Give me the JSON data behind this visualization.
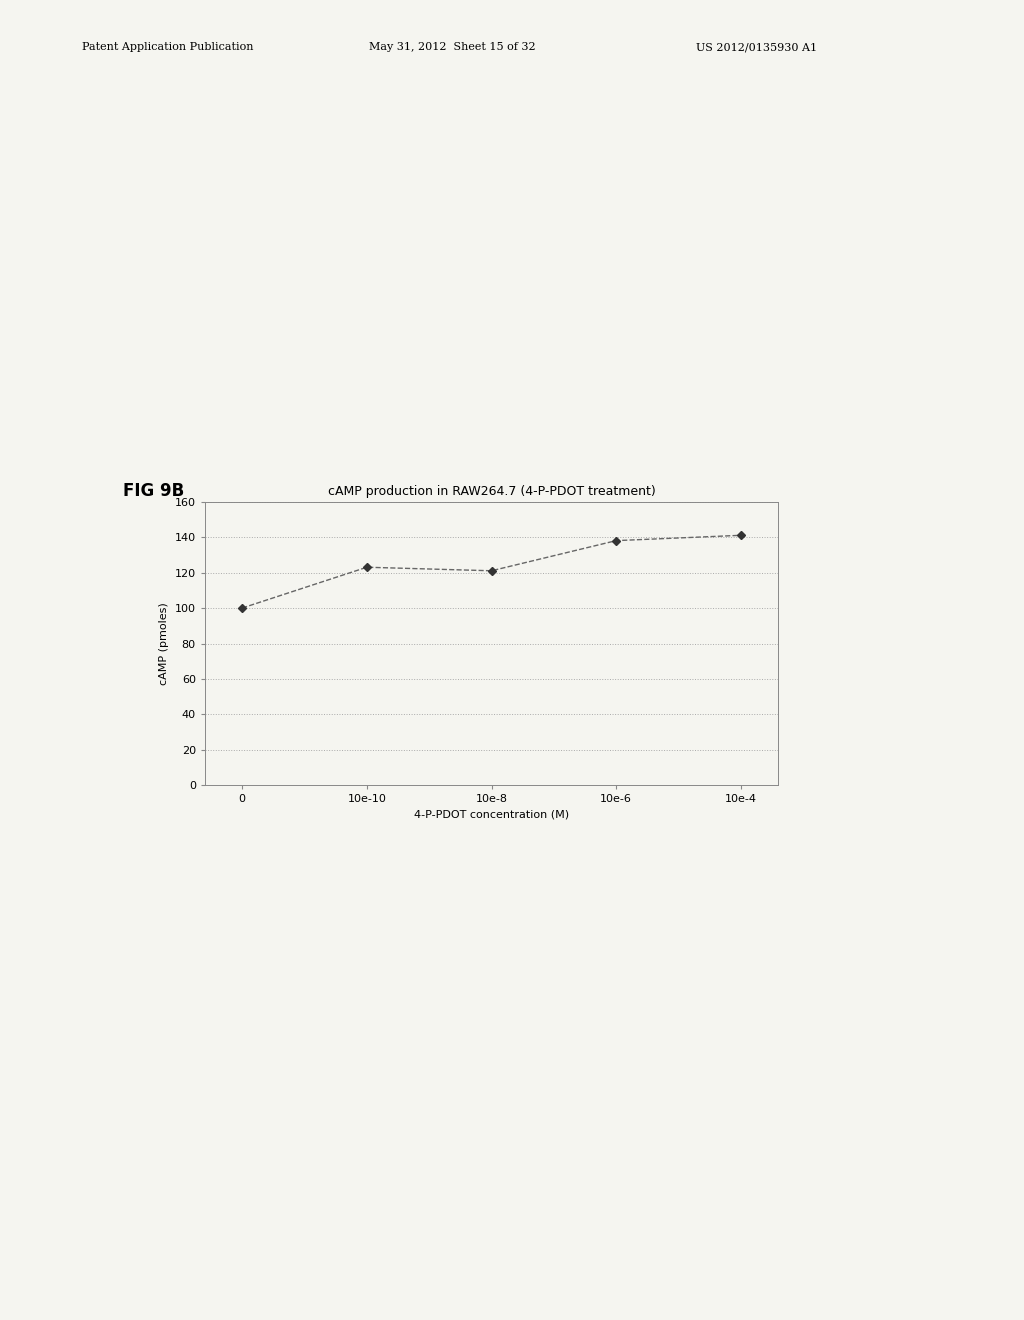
{
  "title": "cAMP production in RAW264.7 (4-P-PDOT treatment)",
  "xlabel": "4-P-PDOT concentration (M)",
  "ylabel": "cAMP (pmoles)",
  "x_tick_labels": [
    "0",
    "10e-10",
    "10e-8",
    "10e-6",
    "10e-4"
  ],
  "x_positions": [
    0,
    1,
    2,
    3,
    4
  ],
  "y_values": [
    100,
    123,
    121,
    138,
    141
  ],
  "ylim": [
    0,
    160
  ],
  "yticks": [
    0,
    20,
    40,
    60,
    80,
    100,
    120,
    140,
    160
  ],
  "line_color": "#666666",
  "marker_color": "#333333",
  "marker": "D",
  "marker_size": 4,
  "grid_color": "#aaaaaa",
  "background_color": "#f5f5f0",
  "title_fontsize": 9,
  "axis_label_fontsize": 8,
  "tick_fontsize": 8,
  "fig_label": "FIG 9B",
  "fig_label_fontsize": 12,
  "header_left": "Patent Application Publication",
  "header_mid": "May 31, 2012  Sheet 15 of 32",
  "header_right": "US 2012/0135930 A1",
  "header_fontsize": 8
}
